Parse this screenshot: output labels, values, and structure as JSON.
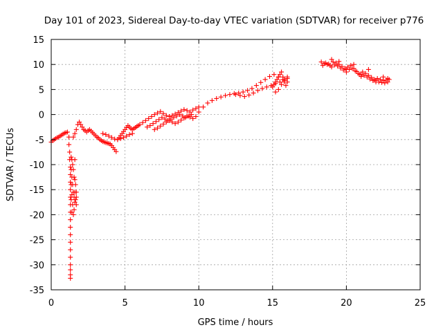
{
  "chart_data": {
    "type": "scatter",
    "title": "Day 101 of 2023, Sidereal Day-to-day VTEC variation (SDTVAR) for receiver p776",
    "xlabel": "GPS time / hours",
    "ylabel": "SDTVAR / TECUs",
    "xlim": [
      0,
      25
    ],
    "ylim": [
      -35,
      15
    ],
    "xticks": [
      "0",
      "5",
      "10",
      "15",
      "20",
      "25"
    ],
    "yticks": [
      "15",
      "10",
      "5",
      "0",
      "-5",
      "-10",
      "-15",
      "-20",
      "-25",
      "-30",
      "-35"
    ],
    "grid": true,
    "marker": "plus",
    "color": "#ff0000",
    "series": [
      {
        "name": "SDTVAR",
        "x": [
          0.0,
          0.1,
          0.2,
          0.3,
          0.4,
          0.5,
          0.6,
          0.7,
          0.8,
          0.9,
          1.0,
          1.1,
          1.2,
          1.2,
          1.25,
          1.25,
          1.3,
          1.3,
          1.3,
          1.3,
          1.3,
          1.3,
          1.3,
          1.3,
          1.3,
          1.3,
          1.3,
          1.3,
          1.3,
          1.3,
          1.3,
          1.3,
          1.3,
          1.35,
          1.35,
          1.35,
          1.35,
          1.4,
          1.4,
          1.4,
          1.4,
          1.45,
          1.45,
          1.45,
          1.5,
          1.5,
          1.5,
          1.55,
          1.55,
          1.55,
          1.6,
          1.6,
          1.6,
          1.6,
          1.65,
          1.65,
          1.7,
          1.7,
          1.7,
          1.5,
          1.6,
          1.7,
          1.8,
          1.9,
          2.0,
          2.1,
          2.2,
          2.3,
          2.4,
          2.5,
          2.6,
          2.7,
          2.8,
          2.9,
          3.0,
          3.1,
          3.2,
          3.3,
          3.4,
          3.5,
          3.6,
          3.7,
          3.8,
          3.9,
          4.0,
          4.1,
          4.2,
          4.3,
          4.4,
          3.5,
          3.7,
          3.9,
          4.1,
          4.3,
          4.5,
          4.7,
          4.9,
          5.1,
          5.3,
          5.5,
          4.5,
          4.6,
          4.7,
          4.8,
          4.9,
          5.0,
          5.1,
          5.2,
          5.3,
          5.4,
          5.5,
          5.6,
          5.7,
          5.8,
          5.9,
          6.0,
          6.2,
          6.4,
          6.6,
          6.8,
          7.0,
          7.2,
          7.4,
          7.6,
          7.8,
          8.0,
          8.2,
          8.4,
          8.6,
          8.8,
          9.0,
          9.2,
          9.4,
          9.6,
          9.8,
          10.0,
          6.5,
          6.7,
          6.9,
          7.1,
          7.3,
          7.5,
          7.7,
          7.9,
          8.1,
          8.3,
          8.5,
          8.7,
          8.9,
          9.1,
          9.3,
          9.5,
          7.0,
          7.2,
          7.4,
          7.6,
          7.8,
          8.0,
          8.2,
          8.4,
          8.6,
          8.8,
          9.0,
          9.2,
          9.4,
          9.6,
          9.8,
          10.0,
          10.3,
          10.6,
          10.9,
          11.2,
          11.5,
          11.8,
          12.1,
          12.4,
          12.7,
          13.0,
          13.3,
          13.6,
          13.9,
          14.2,
          14.5,
          14.8,
          15.1,
          15.4,
          15.7,
          16.0,
          12.5,
          12.8,
          13.1,
          13.4,
          13.7,
          14.0,
          14.3,
          14.6,
          14.9,
          15.2,
          15.5,
          15.8,
          15.0,
          15.1,
          15.2,
          15.3,
          15.4,
          15.5,
          15.6,
          15.7,
          15.8,
          15.9,
          16.0,
          15.2,
          15.4,
          15.6,
          15.8,
          16.0,
          18.3,
          18.5,
          18.7,
          18.9,
          19.1,
          19.3,
          19.5,
          19.7,
          19.9,
          20.1,
          20.3,
          20.5,
          20.7,
          20.9,
          21.1,
          21.3,
          21.5,
          21.7,
          21.9,
          22.1,
          22.3,
          22.5,
          22.7,
          22.9,
          18.4,
          18.6,
          18.8,
          19.0,
          19.2,
          19.4,
          19.6,
          19.8,
          20.0,
          20.2,
          20.4,
          20.6,
          20.8,
          21.0,
          21.2,
          21.4,
          21.6,
          21.8,
          22.0,
          22.2,
          22.4,
          22.6,
          22.8,
          19.0,
          19.5,
          20.0,
          20.5,
          21.0,
          21.5,
          22.0,
          22.5,
          22.8
        ],
        "y": [
          -5.5,
          -5.2,
          -5.0,
          -4.8,
          -4.6,
          -4.5,
          -4.3,
          -4.1,
          -3.9,
          -3.7,
          -3.6,
          -3.5,
          -4.5,
          -6.0,
          -7.5,
          -9.0,
          -10.5,
          -12.0,
          -13.5,
          -15.0,
          -16.5,
          -18.0,
          -19.5,
          -21.0,
          -22.5,
          -24.0,
          -25.5,
          -27.0,
          -28.5,
          -30.0,
          -31.0,
          -32.0,
          -32.7,
          -8.5,
          -11.0,
          -14.0,
          -17.0,
          -9.0,
          -12.5,
          -16.0,
          -19.5,
          -10.0,
          -14.0,
          -18.0,
          -11.0,
          -15.5,
          -20.0,
          -12.5,
          -16.5,
          -19.0,
          -9.0,
          -13.0,
          -15.5,
          -17.5,
          -14.0,
          -17.0,
          -15.5,
          -16.5,
          -18.0,
          -4.5,
          -3.8,
          -3.0,
          -2.0,
          -1.5,
          -2.0,
          -2.5,
          -3.0,
          -3.2,
          -3.5,
          -3.2,
          -3.0,
          -3.3,
          -3.6,
          -3.9,
          -4.2,
          -4.5,
          -4.7,
          -5.0,
          -5.2,
          -5.4,
          -5.5,
          -5.6,
          -5.7,
          -5.8,
          -5.9,
          -6.2,
          -6.6,
          -7.0,
          -7.4,
          -3.8,
          -4.0,
          -4.3,
          -4.6,
          -4.9,
          -5.0,
          -4.8,
          -4.6,
          -4.3,
          -4.0,
          -3.8,
          -5.0,
          -4.6,
          -4.2,
          -3.8,
          -3.4,
          -3.0,
          -2.6,
          -2.2,
          -2.5,
          -2.8,
          -3.0,
          -2.8,
          -2.6,
          -2.4,
          -2.2,
          -2.0,
          -1.6,
          -1.2,
          -0.8,
          -0.4,
          0.0,
          0.3,
          0.6,
          0.2,
          -0.2,
          -0.4,
          -0.2,
          0.1,
          0.4,
          0.7,
          1.0,
          0.8,
          0.5,
          0.9,
          1.2,
          1.5,
          -2.5,
          -2.2,
          -1.8,
          -1.4,
          -1.0,
          -0.6,
          -0.9,
          -1.2,
          -0.9,
          -0.6,
          -0.3,
          0.0,
          -0.3,
          -0.6,
          -0.3,
          0.0,
          -3.0,
          -2.7,
          -2.3,
          -1.9,
          -1.5,
          -1.2,
          -1.5,
          -1.8,
          -1.5,
          -1.1,
          -0.7,
          -0.3,
          -0.5,
          -0.8,
          -0.4,
          0.5,
          1.5,
          2.3,
          2.8,
          3.2,
          3.5,
          3.8,
          4.0,
          4.2,
          4.3,
          4.5,
          4.8,
          5.2,
          5.8,
          6.4,
          7.0,
          7.6,
          8.0,
          7.5,
          7.0,
          6.5,
          4.0,
          3.8,
          3.6,
          3.9,
          4.3,
          4.8,
          5.2,
          5.5,
          5.8,
          6.2,
          6.5,
          6.8,
          5.5,
          6.0,
          6.5,
          7.0,
          7.5,
          8.0,
          8.5,
          7.5,
          6.5,
          5.8,
          7.2,
          4.5,
          5.0,
          6.0,
          7.0,
          7.5,
          10.5,
          10.2,
          10.0,
          9.8,
          10.5,
          10.3,
          10.0,
          9.6,
          9.2,
          9.5,
          9.8,
          9.2,
          8.6,
          8.0,
          8.5,
          8.2,
          7.8,
          7.4,
          7.0,
          7.2,
          7.0,
          6.8,
          6.9,
          7.0,
          9.8,
          10.3,
          10.1,
          9.5,
          9.9,
          9.7,
          9.3,
          8.9,
          8.5,
          9.0,
          9.2,
          8.7,
          8.2,
          7.6,
          7.8,
          7.5,
          7.1,
          6.8,
          6.5,
          6.5,
          6.4,
          6.3,
          6.5,
          11.0,
          10.6,
          9.0,
          10.0,
          8.0,
          9.0,
          6.8,
          7.5,
          7.2
        ]
      }
    ]
  }
}
